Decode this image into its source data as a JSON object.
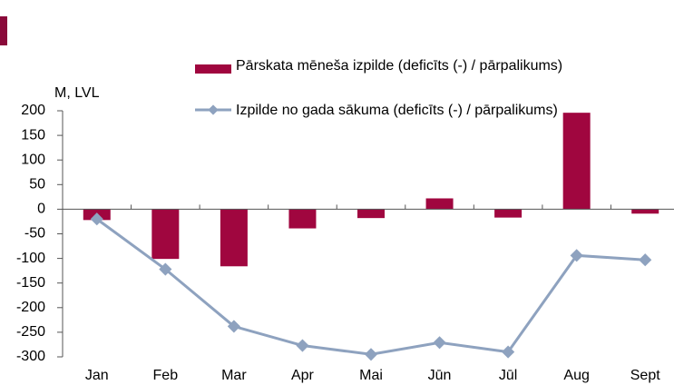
{
  "chart_data": {
    "type": "bar",
    "y_axis_label": "M, LVL",
    "categories": [
      "Jan",
      "Feb",
      "Mar",
      "Apr",
      "Mai",
      "Jūn",
      "Jūl",
      "Aug",
      "Sept"
    ],
    "series": [
      {
        "name": "Pārskata mēneša izpilde (deficīts (-) / pārpalikums)",
        "type": "bar",
        "color": "#a0063f",
        "values": [
          -22,
          -101,
          -116,
          -39,
          -18,
          22,
          -17,
          196,
          -9
        ]
      },
      {
        "name": "Izpilde no gada sākuma (deficīts (-) / pārpalikums)",
        "type": "line",
        "color": "#8ea2bf",
        "values": [
          -20,
          -122,
          -238,
          -277,
          -295,
          -271,
          -290,
          -94,
          -103
        ]
      }
    ],
    "ylim": [
      -300,
      200
    ],
    "yticks": [
      -300,
      -250,
      -200,
      -150,
      -100,
      -50,
      0,
      50,
      100,
      150,
      200
    ]
  }
}
